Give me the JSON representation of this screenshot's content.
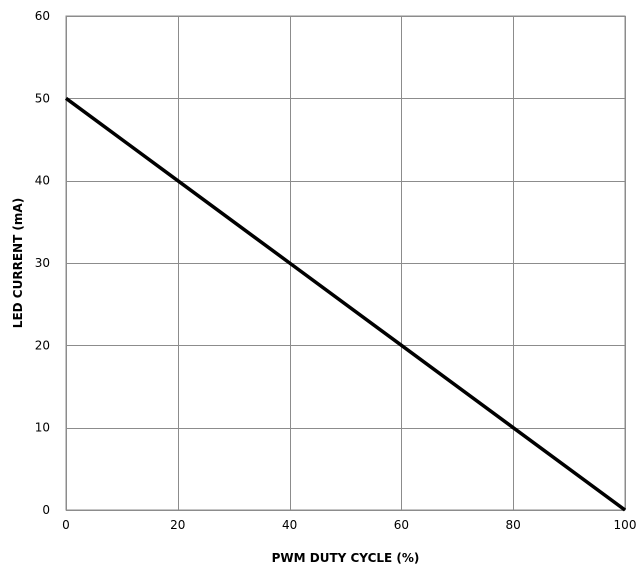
{
  "chart_data": {
    "type": "line",
    "title": "",
    "xlabel": "PWM DUTY CYCLE (%)",
    "ylabel": "LED CURRENT (mA)",
    "xlim": [
      0,
      100
    ],
    "ylim": [
      0,
      60
    ],
    "xticks": [
      0,
      20,
      40,
      60,
      80,
      100
    ],
    "yticks": [
      0,
      10,
      20,
      30,
      40,
      50,
      60
    ],
    "grid": true,
    "legend": "none",
    "series": [
      {
        "x": [
          0,
          20,
          40,
          60,
          80,
          100
        ],
        "y": [
          50,
          40,
          30,
          20,
          10,
          0
        ],
        "color": "#000000"
      }
    ]
  }
}
